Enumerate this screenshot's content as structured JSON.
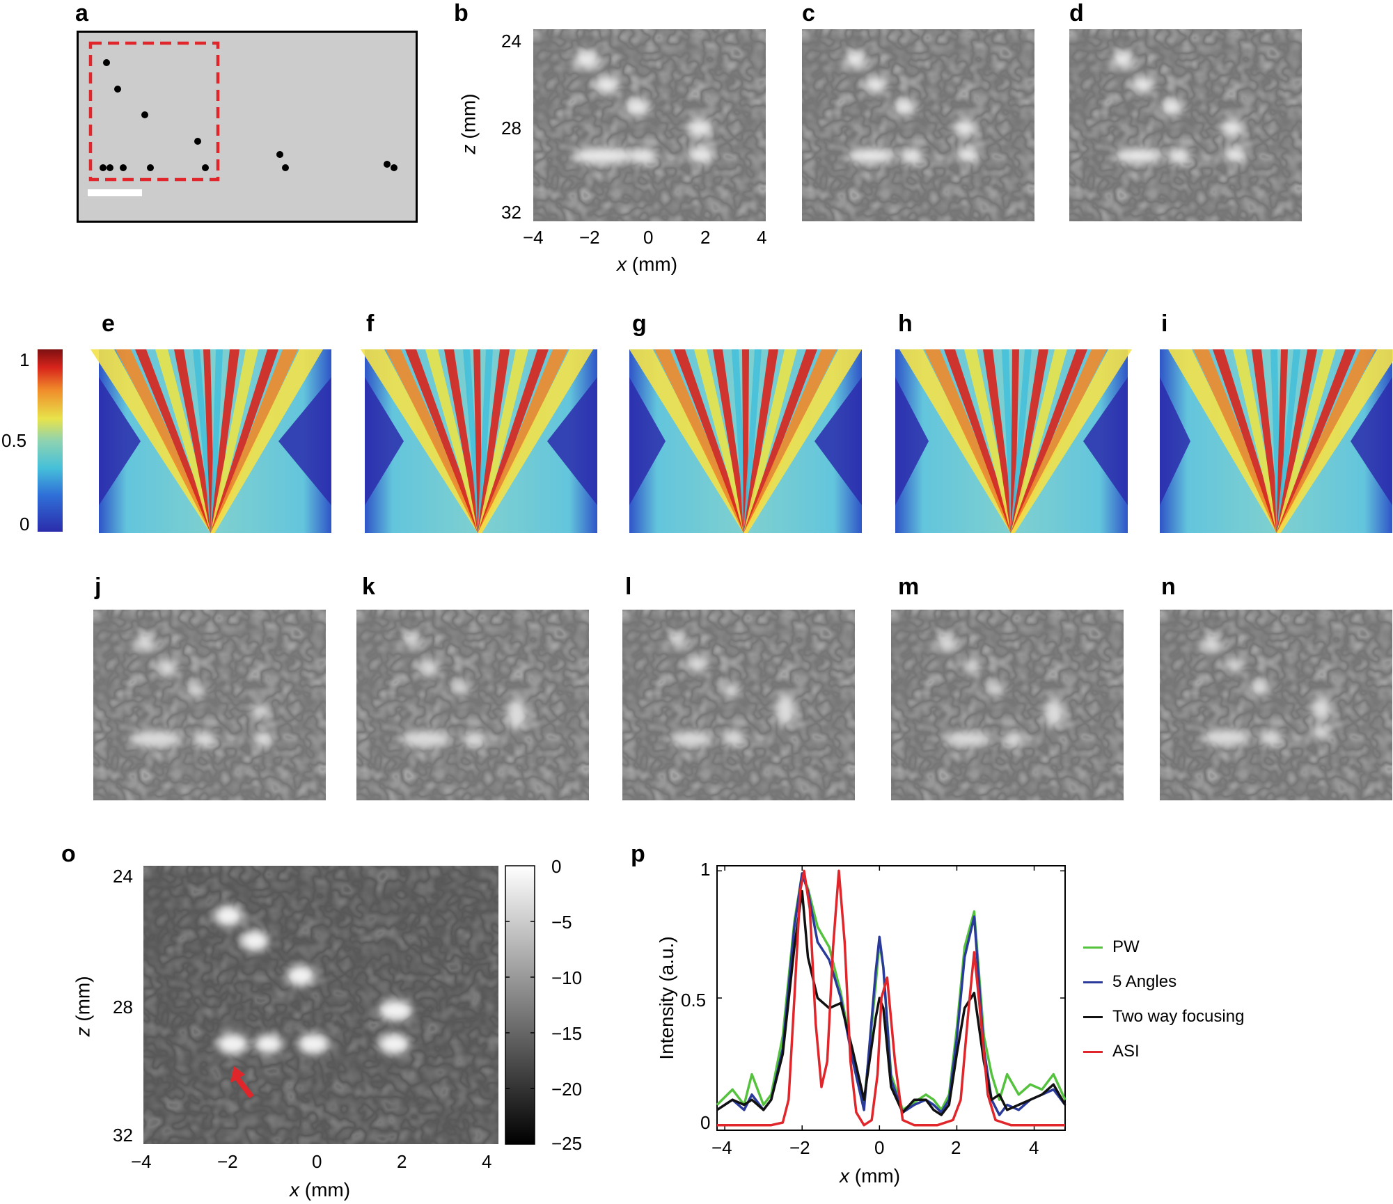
{
  "panel_labels": [
    "a",
    "b",
    "c",
    "d",
    "e",
    "f",
    "g",
    "h",
    "i",
    "j",
    "k",
    "l",
    "m",
    "n",
    "o",
    "p"
  ],
  "panel_b": {
    "y_ticks": [
      "24",
      "28",
      "32"
    ],
    "x_ticks": [
      "−4",
      "−2",
      "0",
      "2",
      "4"
    ],
    "z_axis_var": "z",
    "z_axis_unit": "(mm)",
    "x_axis_var": "x",
    "x_axis_unit": "(mm)"
  },
  "colorbar_e": {
    "ticks": [
      "1",
      "0.5",
      "0"
    ]
  },
  "panel_o": {
    "y_ticks": [
      "24",
      "28",
      "32"
    ],
    "x_ticks": [
      "−4",
      "−2",
      "0",
      "2",
      "4"
    ],
    "z_axis_var": "z",
    "z_axis_unit": "(mm)",
    "x_axis_var": "x",
    "x_axis_unit": "(mm)",
    "colorbar_ticks": [
      "0",
      "−5",
      "−10",
      "−15",
      "−20",
      "−25"
    ]
  },
  "colors": {
    "pw": "#55c23e",
    "angles5": "#2a3a9a",
    "twoway": "#111111",
    "asi": "#e0262a",
    "roi": "#e0262a",
    "phantom_bg": "#cccccc"
  },
  "chart_data": {
    "type": "line",
    "title": "",
    "xlabel_var": "x",
    "xlabel_unit": "(mm)",
    "ylabel": "Intensity (a.u.)",
    "xlim": [
      -4.2,
      4.8
    ],
    "ylim": [
      -0.02,
      1.02
    ],
    "x_ticks": [
      "−4",
      "−2",
      "0",
      "2",
      "4"
    ],
    "y_ticks": [
      "0",
      "0.5",
      "1"
    ],
    "legend_position": "right",
    "series": [
      {
        "name": "PW",
        "color": "#55c23e",
        "x": [
          -4.2,
          -3.8,
          -3.5,
          -3.3,
          -3.0,
          -2.8,
          -2.5,
          -2.2,
          -2.0,
          -1.85,
          -1.6,
          -1.3,
          -1.0,
          -0.7,
          -0.4,
          -0.1,
          0.0,
          0.1,
          0.3,
          0.6,
          0.9,
          1.2,
          1.4,
          1.6,
          1.8,
          2.0,
          2.2,
          2.45,
          2.7,
          2.9,
          3.1,
          3.3,
          3.6,
          3.9,
          4.2,
          4.5,
          4.8
        ],
        "y": [
          0.08,
          0.14,
          0.08,
          0.2,
          0.08,
          0.12,
          0.35,
          0.8,
          0.99,
          0.93,
          0.78,
          0.7,
          0.52,
          0.28,
          0.08,
          0.55,
          0.72,
          0.62,
          0.2,
          0.06,
          0.09,
          0.12,
          0.1,
          0.06,
          0.12,
          0.38,
          0.7,
          0.84,
          0.35,
          0.2,
          0.1,
          0.2,
          0.12,
          0.16,
          0.14,
          0.2,
          0.1
        ]
      },
      {
        "name": "5 Angles",
        "color": "#2a3a9a",
        "x": [
          -4.2,
          -3.8,
          -3.5,
          -3.3,
          -3.0,
          -2.8,
          -2.5,
          -2.2,
          -2.0,
          -1.85,
          -1.6,
          -1.3,
          -1.0,
          -0.7,
          -0.4,
          -0.1,
          0.0,
          0.1,
          0.3,
          0.6,
          0.9,
          1.2,
          1.4,
          1.6,
          1.8,
          2.0,
          2.2,
          2.45,
          2.7,
          2.9,
          3.1,
          3.3,
          3.6,
          3.9,
          4.2,
          4.5,
          4.8
        ],
        "y": [
          0.06,
          0.1,
          0.06,
          0.12,
          0.06,
          0.1,
          0.3,
          0.78,
          0.99,
          0.92,
          0.72,
          0.65,
          0.5,
          0.26,
          0.06,
          0.6,
          0.74,
          0.62,
          0.18,
          0.05,
          0.08,
          0.1,
          0.08,
          0.05,
          0.1,
          0.34,
          0.66,
          0.82,
          0.3,
          0.1,
          0.04,
          0.08,
          0.06,
          0.1,
          0.12,
          0.14,
          0.08
        ]
      },
      {
        "name": "Two way focusing",
        "color": "#111111",
        "x": [
          -4.2,
          -3.8,
          -3.5,
          -3.3,
          -3.0,
          -2.8,
          -2.5,
          -2.2,
          -2.0,
          -1.85,
          -1.6,
          -1.3,
          -1.0,
          -0.7,
          -0.4,
          -0.1,
          0.0,
          0.1,
          0.3,
          0.6,
          0.9,
          1.2,
          1.4,
          1.6,
          1.8,
          2.0,
          2.2,
          2.45,
          2.7,
          2.9,
          3.1,
          3.3,
          3.6,
          3.9,
          4.2,
          4.5,
          4.8
        ],
        "y": [
          0.06,
          0.1,
          0.08,
          0.1,
          0.06,
          0.1,
          0.28,
          0.7,
          0.92,
          0.66,
          0.5,
          0.46,
          0.48,
          0.3,
          0.1,
          0.42,
          0.5,
          0.46,
          0.15,
          0.05,
          0.1,
          0.1,
          0.06,
          0.04,
          0.08,
          0.28,
          0.46,
          0.52,
          0.25,
          0.1,
          0.12,
          0.06,
          0.08,
          0.1,
          0.12,
          0.16,
          0.08
        ]
      },
      {
        "name": "ASI",
        "color": "#e0262a",
        "x": [
          -4.2,
          -3.6,
          -3.2,
          -2.8,
          -2.5,
          -2.35,
          -2.2,
          -2.05,
          -1.95,
          -1.8,
          -1.65,
          -1.5,
          -1.35,
          -1.2,
          -1.05,
          -0.9,
          -0.75,
          -0.6,
          -0.4,
          -0.2,
          -0.05,
          0.05,
          0.2,
          0.4,
          0.6,
          0.9,
          1.5,
          1.9,
          2.1,
          2.3,
          2.45,
          2.6,
          2.8,
          3.0,
          3.4,
          4.0,
          4.8
        ],
        "y": [
          0.0,
          0.0,
          0.0,
          0.0,
          0.01,
          0.1,
          0.5,
          0.92,
          1.0,
          0.85,
          0.4,
          0.15,
          0.25,
          0.7,
          1.0,
          0.72,
          0.25,
          0.05,
          0.0,
          0.02,
          0.2,
          0.5,
          0.58,
          0.25,
          0.02,
          0.0,
          0.0,
          0.02,
          0.1,
          0.45,
          0.68,
          0.45,
          0.12,
          0.02,
          0.0,
          0.0,
          0.0
        ]
      }
    ]
  }
}
